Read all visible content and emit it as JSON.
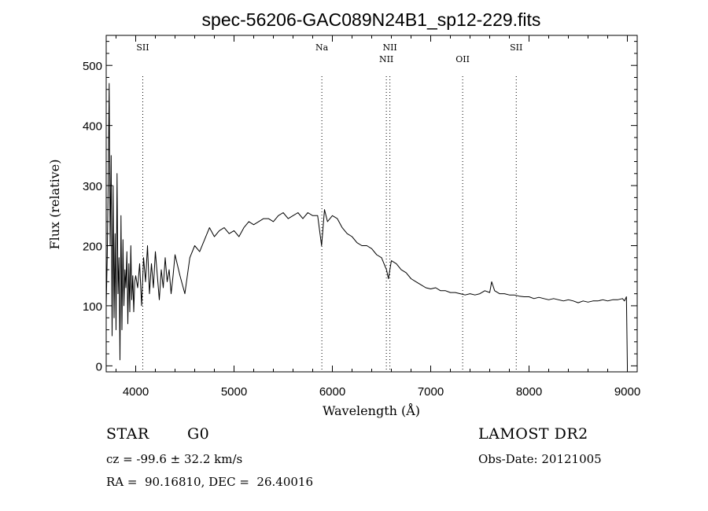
{
  "chart_data": {
    "type": "line",
    "title": "spec-56206-GAC089N24B1_sp12-229.fits",
    "xlabel": "Wavelength (Å)",
    "ylabel": "Flux (relative)",
    "xlim": [
      3700,
      9100
    ],
    "ylim": [
      -10,
      550
    ],
    "xticks": [
      4000,
      5000,
      6000,
      7000,
      8000,
      9000
    ],
    "yticks": [
      0,
      100,
      200,
      300,
      400,
      500
    ],
    "xtick_labels": [
      "4000",
      "5000",
      "6000",
      "7000",
      "8000",
      "9000"
    ],
    "ytick_labels": [
      "0",
      "100",
      "200",
      "300",
      "400",
      "500"
    ],
    "grid": false,
    "series": [
      {
        "x": [
          3700,
          3710,
          3720,
          3730,
          3740,
          3750,
          3760,
          3770,
          3780,
          3790,
          3800,
          3810,
          3820,
          3830,
          3840,
          3850,
          3860,
          3870,
          3880,
          3890,
          3900,
          3910,
          3920,
          3930,
          3940,
          3950,
          3960,
          3970,
          3980,
          3990,
          4000,
          4020,
          4040,
          4060,
          4080,
          4100,
          4120,
          4140,
          4160,
          4180,
          4200,
          4220,
          4240,
          4260,
          4280,
          4300,
          4320,
          4340,
          4360,
          4380,
          4400,
          4450,
          4500,
          4550,
          4600,
          4650,
          4700,
          4750,
          4800,
          4850,
          4900,
          4950,
          5000,
          5050,
          5100,
          5150,
          5200,
          5250,
          5300,
          5350,
          5400,
          5450,
          5500,
          5550,
          5600,
          5650,
          5700,
          5750,
          5800,
          5850,
          5890,
          5920,
          5950,
          6000,
          6050,
          6100,
          6150,
          6200,
          6250,
          6300,
          6350,
          6400,
          6450,
          6500,
          6550,
          6570,
          6600,
          6650,
          6700,
          6750,
          6800,
          6850,
          6900,
          6950,
          7000,
          7050,
          7100,
          7150,
          7200,
          7250,
          7300,
          7350,
          7400,
          7450,
          7500,
          7550,
          7600,
          7620,
          7650,
          7700,
          7750,
          7800,
          7850,
          7900,
          7950,
          8000,
          8050,
          8100,
          8150,
          8200,
          8250,
          8300,
          8350,
          8400,
          8450,
          8500,
          8550,
          8600,
          8650,
          8700,
          8750,
          8800,
          8850,
          8900,
          8950,
          8970,
          8990,
          9000
        ],
        "y": [
          100,
          180,
          300,
          470,
          200,
          350,
          50,
          300,
          80,
          220,
          60,
          320,
          120,
          180,
          10,
          250,
          60,
          210,
          100,
          160,
          130,
          190,
          70,
          170,
          90,
          200,
          110,
          150,
          90,
          140,
          150,
          130,
          170,
          100,
          180,
          140,
          200,
          120,
          170,
          130,
          190,
          150,
          110,
          160,
          130,
          180,
          140,
          160,
          120,
          150,
          185,
          150,
          120,
          180,
          200,
          190,
          210,
          230,
          215,
          225,
          230,
          220,
          225,
          215,
          230,
          240,
          235,
          240,
          245,
          245,
          240,
          250,
          255,
          245,
          250,
          255,
          245,
          255,
          250,
          250,
          200,
          260,
          240,
          250,
          245,
          230,
          220,
          215,
          205,
          200,
          200,
          195,
          185,
          180,
          160,
          145,
          175,
          170,
          160,
          155,
          145,
          140,
          135,
          130,
          128,
          130,
          125,
          125,
          122,
          122,
          120,
          118,
          120,
          118,
          120,
          125,
          122,
          140,
          125,
          120,
          120,
          118,
          118,
          116,
          115,
          115,
          112,
          114,
          112,
          110,
          112,
          110,
          108,
          110,
          108,
          105,
          108,
          106,
          108,
          108,
          110,
          108,
          110,
          110,
          112,
          108,
          115,
          0
        ]
      }
    ],
    "annotations": [
      {
        "label": "SII",
        "x": 4072
      },
      {
        "label": "Na",
        "x": 5893
      },
      {
        "label": "NII",
        "x": 6549
      },
      {
        "label": "NII",
        "x": 6585
      },
      {
        "label": "OII",
        "x": 7325
      },
      {
        "label": "SII",
        "x": 7870
      }
    ]
  },
  "info": {
    "object_type": "STAR",
    "subclass": "G0",
    "survey": "LAMOST DR2",
    "redshift_text": "cz = -99.6 ± 32.2 km/s",
    "obs_date_text": "Obs-Date: 20121005",
    "coords_text": "RA =  90.16810, DEC =  26.40016"
  }
}
